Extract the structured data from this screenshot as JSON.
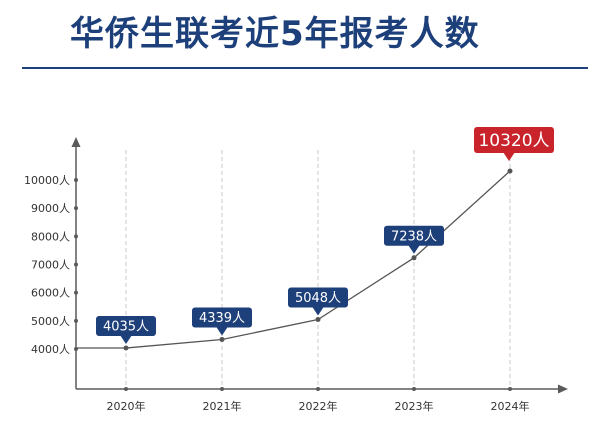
{
  "page": {
    "title": "华侨生联考近5年报考人数"
  },
  "chart_data": {
    "type": "line",
    "title": "华侨生联考近5年报考人数",
    "xlabel": "",
    "ylabel": "",
    "categories": [
      "2020年",
      "2021年",
      "2022年",
      "2023年",
      "2024年"
    ],
    "series": [
      {
        "values": [
          4035,
          4339,
          5048,
          7238,
          10320
        ],
        "labels": [
          "4035人",
          "4339人",
          "5048人",
          "7238人",
          "10320人"
        ]
      }
    ],
    "yticks": [
      4000,
      5000,
      6000,
      7000,
      8000,
      9000,
      10000
    ],
    "ytick_labels": [
      "4000人",
      "5000人",
      "6000人",
      "7000人",
      "8000人",
      "9000人",
      "10000人"
    ],
    "ylim": [
      4000,
      10000
    ],
    "grid": "vertical dashed",
    "colors": {
      "title": "#1d3f7a",
      "callout": "#1d3f7a",
      "highlight": "#c9242b",
      "line": "#555555",
      "axis": "#5a5a5a",
      "grid": "#c8c8c8"
    }
  }
}
